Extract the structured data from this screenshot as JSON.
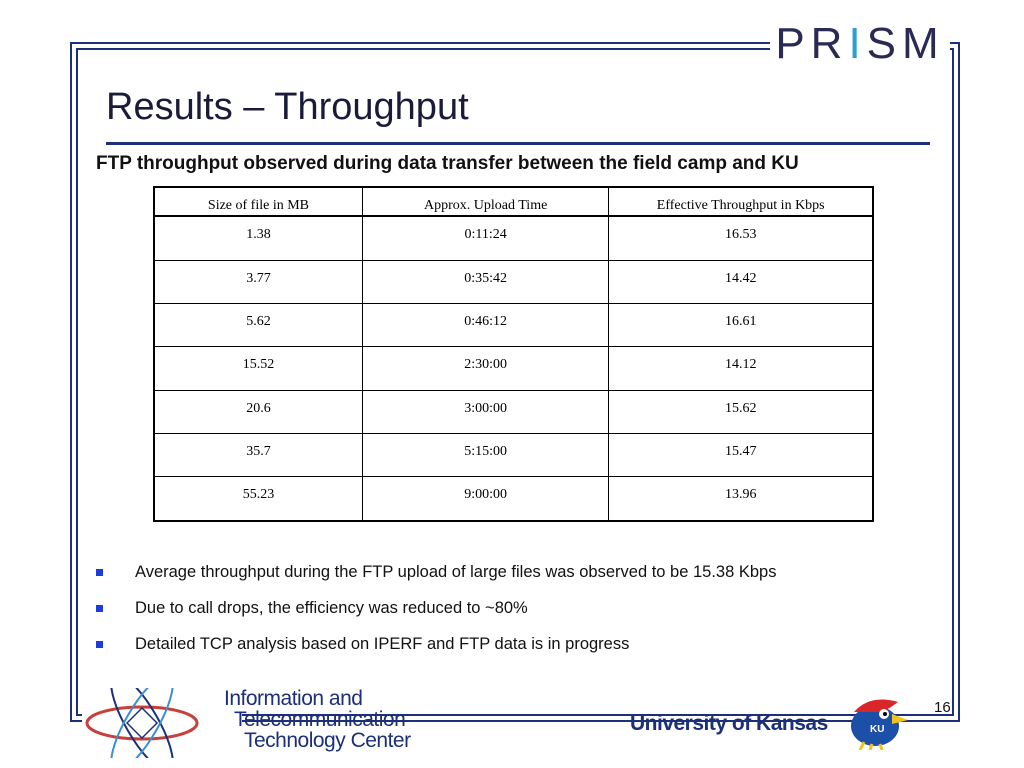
{
  "header": {
    "logo_text_a": "PR",
    "logo_text_i": "I",
    "logo_text_b": "SM"
  },
  "slide": {
    "title": "Results – Throughput",
    "subtitle": "FTP throughput observed during data transfer between the field camp and KU",
    "page_number": "16"
  },
  "table": {
    "headers": [
      "Size of file in MB",
      "Approx. Upload Time",
      "Effective Throughput in Kbps"
    ],
    "rows": [
      [
        "1.38",
        "0:11:24",
        "16.53"
      ],
      [
        "3.77",
        "0:35:42",
        "14.42"
      ],
      [
        "5.62",
        "0:46:12",
        "16.61"
      ],
      [
        "15.52",
        "2:30:00",
        "14.12"
      ],
      [
        "20.6",
        "3:00:00",
        "15.62"
      ],
      [
        "35.7",
        "5:15:00",
        "15.47"
      ],
      [
        "55.23",
        "9:00:00",
        "13.96"
      ]
    ]
  },
  "bullets": [
    "Average throughput during the FTP upload of large files was observed to be 15.38 Kbps",
    "Due to call drops, the efficiency was reduced to ~80%",
    "Detailed TCP analysis based on IPERF and FTP data is in progress"
  ],
  "footer": {
    "ittc_line1": "Information and",
    "ittc_line2": "Telecommunication",
    "ittc_line3": "Technology Center",
    "university": "University of Kansas"
  },
  "colors": {
    "frame": "#1c2f7a",
    "bullet": "#1e3cdc"
  }
}
